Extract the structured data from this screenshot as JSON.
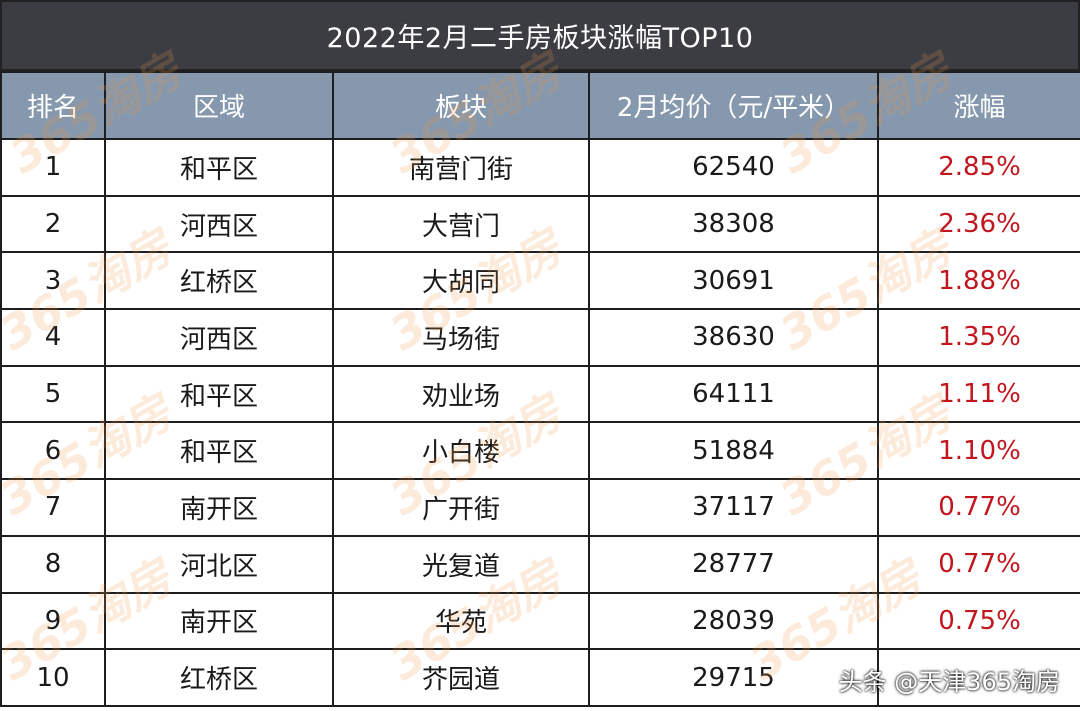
{
  "title": "2022年2月二手房板块涨幅TOP10",
  "headers": [
    "排名",
    "区域",
    "板块",
    "2月均价（元/平米）",
    "涨幅"
  ],
  "rows": [
    {
      "rank": "1",
      "district": "和平区",
      "area": "南营门街",
      "price": "62540",
      "change": "2.85%"
    },
    {
      "rank": "2",
      "district": "河西区",
      "area": "大营门",
      "price": "38308",
      "change": "2.36%"
    },
    {
      "rank": "3",
      "district": "红桥区",
      "area": "大胡同",
      "price": "30691",
      "change": "1.88%"
    },
    {
      "rank": "4",
      "district": "河西区",
      "area": "马场街",
      "price": "38630",
      "change": "1.35%"
    },
    {
      "rank": "5",
      "district": "和平区",
      "area": "劝业场",
      "price": "64111",
      "change": "1.11%"
    },
    {
      "rank": "6",
      "district": "和平区",
      "area": "小白楼",
      "price": "51884",
      "change": "1.10%"
    },
    {
      "rank": "7",
      "district": "南开区",
      "area": "广开街",
      "price": "37117",
      "change": "0.77%"
    },
    {
      "rank": "8",
      "district": "河北区",
      "area": "光复道",
      "price": "28777",
      "change": "0.77%"
    },
    {
      "rank": "9",
      "district": "南开区",
      "area": "华苑",
      "price": "28039",
      "change": "0.75%"
    },
    {
      "rank": "10",
      "district": "红桥区",
      "area": "芥园道",
      "price": "29715",
      "change": ""
    }
  ],
  "watermark_text": "365淘房",
  "credit": "头条 @天津365淘房",
  "colors": {
    "title_bg": "#3b3d43",
    "header_bg": "#8598ad",
    "rise_text": "#c0161e",
    "watermark": "#f0964633"
  }
}
